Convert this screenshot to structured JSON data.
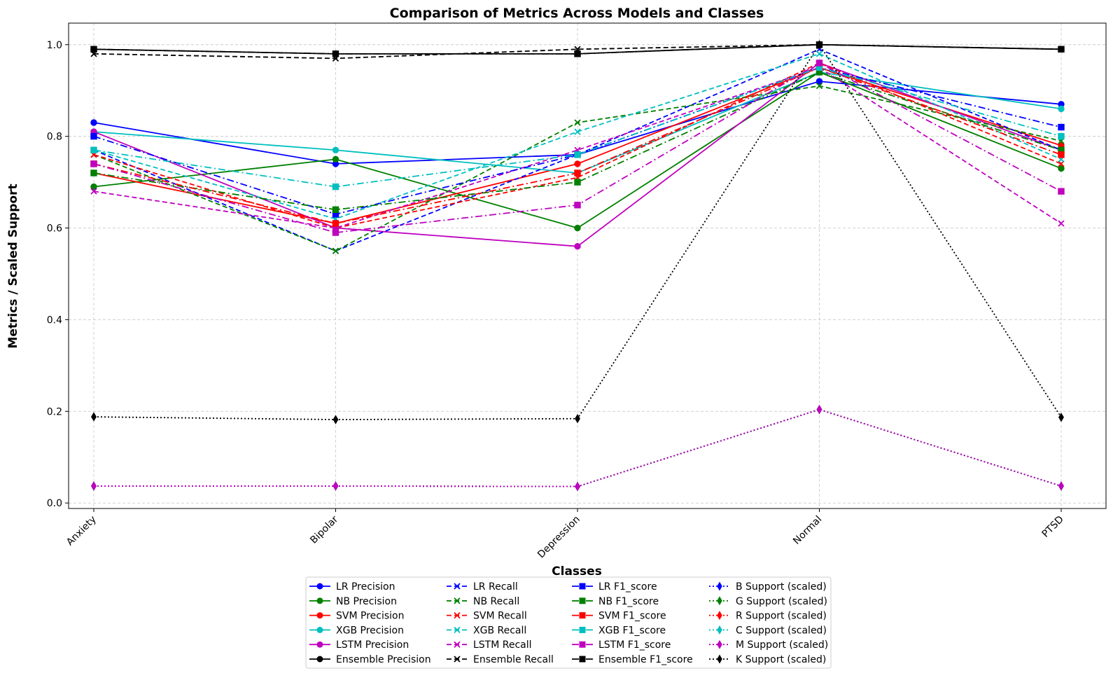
{
  "chart_data": {
    "type": "line",
    "title": "Comparison of Metrics Across Models and Classes",
    "xlabel": "Classes",
    "ylabel": "Metrics / Scaled Support",
    "categories": [
      "Anxiety",
      "Bipolar",
      "Depression",
      "Normal",
      "PTSD"
    ],
    "ylim": [
      -0.012,
      1.047
    ],
    "yticks": [
      "0.0",
      "0.2",
      "0.4",
      "0.6",
      "0.8",
      "1.0"
    ],
    "grid": true,
    "legend_location": "below plot, 4 columns",
    "series": [
      {
        "name": "LR Precision",
        "color": "#0000ff",
        "style": "solid",
        "marker": "circle",
        "values": [
          0.83,
          0.74,
          0.76,
          0.92,
          0.87
        ]
      },
      {
        "name": "NB Precision",
        "color": "#008000",
        "style": "solid",
        "marker": "circle",
        "values": [
          0.69,
          0.75,
          0.6,
          0.94,
          0.73
        ]
      },
      {
        "name": "SVM Precision",
        "color": "#ff0000",
        "style": "solid",
        "marker": "circle",
        "values": [
          0.72,
          0.61,
          0.74,
          0.95,
          0.78
        ]
      },
      {
        "name": "XGB Precision",
        "color": "#00bfbf",
        "style": "solid",
        "marker": "circle",
        "values": [
          0.81,
          0.77,
          0.72,
          0.94,
          0.86
        ]
      },
      {
        "name": "LSTM Precision",
        "color": "#bf00bf",
        "style": "solid",
        "marker": "circle",
        "values": [
          0.81,
          0.6,
          0.56,
          0.96,
          0.77
        ]
      },
      {
        "name": "Ensemble Precision",
        "color": "#000000",
        "style": "solid",
        "marker": "circle",
        "values": [
          0.99,
          0.98,
          0.98,
          1.0,
          0.99
        ]
      },
      {
        "name": "LR Recall",
        "color": "#0000ff",
        "style": "dashed",
        "marker": "x",
        "values": [
          0.77,
          0.55,
          0.76,
          0.99,
          0.77
        ]
      },
      {
        "name": "NB Recall",
        "color": "#008000",
        "style": "dashed",
        "marker": "x",
        "values": [
          0.76,
          0.55,
          0.83,
          0.91,
          0.79
        ]
      },
      {
        "name": "SVM Recall",
        "color": "#ff0000",
        "style": "dashed",
        "marker": "x",
        "values": [
          0.76,
          0.6,
          0.71,
          0.96,
          0.74
        ]
      },
      {
        "name": "XGB Recall",
        "color": "#00bfbf",
        "style": "dashed",
        "marker": "x",
        "values": [
          0.77,
          0.62,
          0.81,
          0.98,
          0.75
        ]
      },
      {
        "name": "LSTM Recall",
        "color": "#bf00bf",
        "style": "dashed",
        "marker": "x",
        "values": [
          0.68,
          0.6,
          0.77,
          0.95,
          0.61
        ]
      },
      {
        "name": "Ensemble Recall",
        "color": "#000000",
        "style": "dashed",
        "marker": "x",
        "values": [
          0.98,
          0.97,
          0.99,
          1.0,
          0.99
        ]
      },
      {
        "name": "LR F1_score",
        "color": "#0000ff",
        "style": "dashdot",
        "marker": "square",
        "values": [
          0.8,
          0.63,
          0.76,
          0.95,
          0.82
        ]
      },
      {
        "name": "NB F1_score",
        "color": "#008000",
        "style": "dashdot",
        "marker": "square",
        "values": [
          0.72,
          0.64,
          0.7,
          0.94,
          0.77
        ]
      },
      {
        "name": "SVM F1_score",
        "color": "#ff0000",
        "style": "dashdot",
        "marker": "square",
        "values": [
          0.74,
          0.61,
          0.72,
          0.95,
          0.76
        ]
      },
      {
        "name": "XGB F1_score",
        "color": "#00bfbf",
        "style": "dashdot",
        "marker": "square",
        "values": [
          0.77,
          0.69,
          0.76,
          0.95,
          0.8
        ]
      },
      {
        "name": "LSTM F1_score",
        "color": "#bf00bf",
        "style": "dashdot",
        "marker": "square",
        "values": [
          0.74,
          0.59,
          0.65,
          0.96,
          0.68
        ]
      },
      {
        "name": "Ensemble F1_score",
        "color": "#000000",
        "style": "dashdot",
        "marker": "square",
        "values": [
          0.99,
          0.98,
          0.98,
          1.0,
          0.99
        ]
      },
      {
        "name": "B Support (scaled)",
        "color": "#0000ff",
        "style": "dotted",
        "marker": "diamond",
        "values": [
          0.037,
          0.037,
          0.036,
          0.204,
          0.037
        ]
      },
      {
        "name": "G Support (scaled)",
        "color": "#008000",
        "style": "dotted",
        "marker": "diamond",
        "values": [
          0.037,
          0.037,
          0.036,
          0.204,
          0.037
        ]
      },
      {
        "name": "R Support (scaled)",
        "color": "#ff0000",
        "style": "dotted",
        "marker": "diamond",
        "values": [
          0.037,
          0.037,
          0.036,
          0.204,
          0.037
        ]
      },
      {
        "name": "C Support (scaled)",
        "color": "#00bfbf",
        "style": "dotted",
        "marker": "diamond",
        "values": [
          0.037,
          0.037,
          0.036,
          0.204,
          0.037
        ]
      },
      {
        "name": "M Support (scaled)",
        "color": "#bf00bf",
        "style": "dotted",
        "marker": "diamond",
        "values": [
          0.037,
          0.037,
          0.036,
          0.204,
          0.037
        ]
      },
      {
        "name": "K Support (scaled)",
        "color": "#000000",
        "style": "dotted",
        "marker": "diamond",
        "values": [
          0.188,
          0.182,
          0.184,
          1.0,
          0.187
        ]
      }
    ]
  }
}
